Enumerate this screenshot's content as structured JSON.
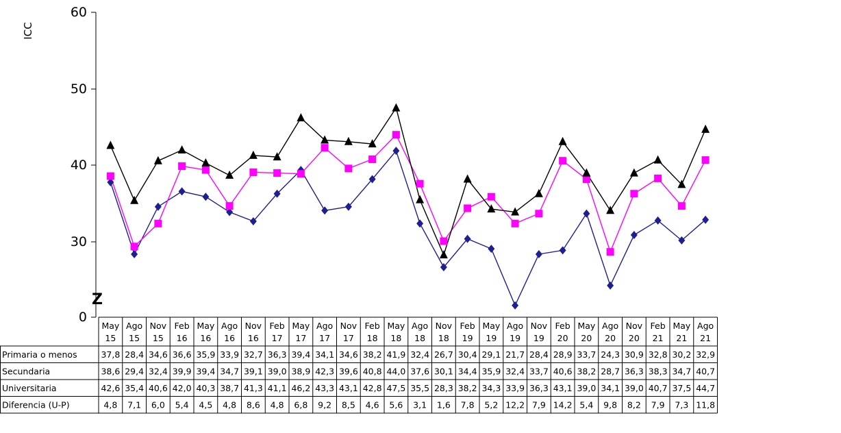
{
  "chart_data": {
    "type": "line",
    "ylabel": "ICC",
    "yticks": [
      "60",
      "50",
      "40",
      "30",
      "0"
    ],
    "axis_break_marker": "Z",
    "categories": [
      [
        "May",
        "15"
      ],
      [
        "Ago",
        "15"
      ],
      [
        "Nov",
        "15"
      ],
      [
        "Feb",
        "16"
      ],
      [
        "May",
        "16"
      ],
      [
        "Ago",
        "16"
      ],
      [
        "Nov",
        "16"
      ],
      [
        "Feb",
        "17"
      ],
      [
        "May",
        "17"
      ],
      [
        "Ago",
        "17"
      ],
      [
        "Nov",
        "17"
      ],
      [
        "Feb",
        "18"
      ],
      [
        "May",
        "18"
      ],
      [
        "Ago",
        "18"
      ],
      [
        "Nov",
        "18"
      ],
      [
        "Feb",
        "19"
      ],
      [
        "May",
        "19"
      ],
      [
        "Ago",
        "19"
      ],
      [
        "Nov",
        "19"
      ],
      [
        "Feb",
        "20"
      ],
      [
        "May",
        "20"
      ],
      [
        "Ago",
        "20"
      ],
      [
        "Nov",
        "20"
      ],
      [
        "Feb",
        "21"
      ],
      [
        "May",
        "21"
      ],
      [
        "Ago",
        "21"
      ]
    ],
    "series": [
      {
        "name": "Primaria o menos",
        "color": "#1f1f8f",
        "marker": "diamond",
        "plotted": true,
        "values": [
          "37,8",
          "28,4",
          "34,6",
          "36,6",
          "35,9",
          "33,9",
          "32,7",
          "36,3",
          "39,4",
          "34,1",
          "34,6",
          "38,2",
          "41,9",
          "32,4",
          "26,7",
          "30,4",
          "29,1",
          "21,7",
          "28,4",
          "28,9",
          "33,7",
          "24,3",
          "30,9",
          "32,8",
          "30,2",
          "32,9"
        ]
      },
      {
        "name": "Secundaria",
        "color": "#ff00ff",
        "marker": "square",
        "plotted": true,
        "values": [
          "38,6",
          "29,4",
          "32,4",
          "39,9",
          "39,4",
          "34,7",
          "39,1",
          "39,0",
          "38,9",
          "42,3",
          "39,6",
          "40,8",
          "44,0",
          "37,6",
          "30,1",
          "34,4",
          "35,9",
          "32,4",
          "33,7",
          "40,6",
          "38,2",
          "28,7",
          "36,3",
          "38,3",
          "34,7",
          "40,7"
        ]
      },
      {
        "name": "Universitaria",
        "color": "#000000",
        "marker": "triangle",
        "plotted": true,
        "values": [
          "42,6",
          "35,4",
          "40,6",
          "42,0",
          "40,3",
          "38,7",
          "41,3",
          "41,1",
          "46,2",
          "43,3",
          "43,1",
          "42,8",
          "47,5",
          "35,5",
          "28,3",
          "38,2",
          "34,3",
          "33,9",
          "36,3",
          "43,1",
          "39,0",
          "34,1",
          "39,0",
          "40,7",
          "37,5",
          "44,7"
        ]
      },
      {
        "name": "Diferencia (U-P)",
        "plotted": false,
        "values": [
          "4,8",
          "7,1",
          "6,0",
          "5,4",
          "4,5",
          "4,8",
          "8,6",
          "4,8",
          "6,8",
          "9,2",
          "8,5",
          "4,6",
          "5,6",
          "3,1",
          "1,6",
          "7,8",
          "5,2",
          "12,2",
          "7,9",
          "14,2",
          "5,4",
          "9,8",
          "8,2",
          "7,9",
          "7,3",
          "11,8"
        ]
      }
    ]
  }
}
